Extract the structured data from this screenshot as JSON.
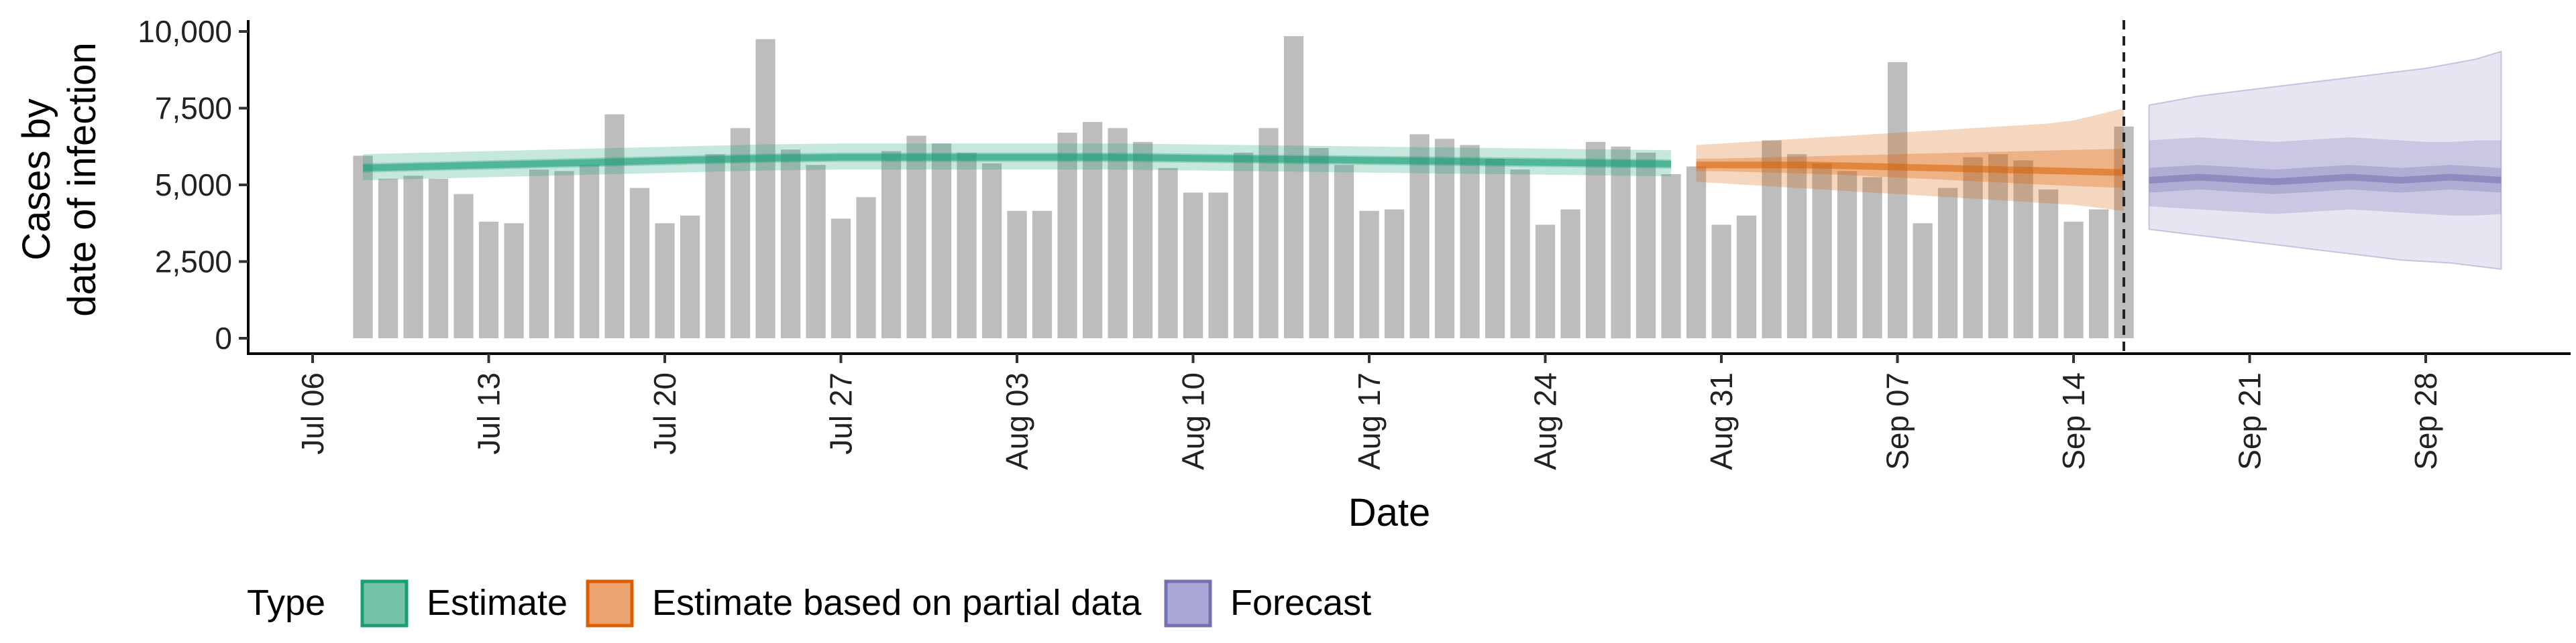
{
  "chart_data": {
    "type": "bar",
    "xlabel": "Date",
    "ylabel_lines": [
      "Cases by",
      "date of infection"
    ],
    "ylim": [
      0,
      10000
    ],
    "yticks": [
      0,
      2500,
      5000,
      7500,
      10000
    ],
    "ytick_labels": [
      "0",
      "2,500",
      "5,000",
      "7,500",
      "10,000"
    ],
    "xlim": [
      "2020-07-04",
      "2020-10-03"
    ],
    "xticks": [
      "2020-07-06",
      "2020-07-13",
      "2020-07-20",
      "2020-07-27",
      "2020-08-03",
      "2020-08-10",
      "2020-08-17",
      "2020-08-24",
      "2020-08-31",
      "2020-09-07",
      "2020-09-14",
      "2020-09-21",
      "2020-09-28"
    ],
    "xtick_labels": [
      "Jul 06",
      "Jul 13",
      "Jul 20",
      "Jul 27",
      "Aug 03",
      "Aug 10",
      "Aug 17",
      "Aug 24",
      "Aug 31",
      "Sep 07",
      "Sep 14",
      "Sep 21",
      "Sep 28"
    ],
    "vline_date": "2020-09-16",
    "bar_color": "#bdbdbd",
    "bars": {
      "start_date": "2020-07-08",
      "values": [
        5950,
        5200,
        5300,
        5200,
        4700,
        3800,
        3750,
        5500,
        5450,
        5650,
        7300,
        4900,
        3750,
        4000,
        6000,
        6850,
        9750,
        6150,
        5650,
        3900,
        4600,
        6100,
        6600,
        6350,
        6050,
        5700,
        4150,
        4150,
        6700,
        7050,
        6850,
        6400,
        5550,
        4750,
        4750,
        6050,
        6850,
        9850,
        6200,
        5650,
        4150,
        4200,
        6650,
        6500,
        6300,
        5850,
        5500,
        3700,
        4200,
        6400,
        6250,
        6050,
        5350,
        5600,
        3700,
        4000,
        6450,
        6000,
        5700,
        5450,
        5250,
        9000,
        3750,
        4900,
        5900,
        6000,
        5800,
        4850,
        3800,
        4200,
        6900
      ]
    },
    "series": [
      {
        "name": "Estimate",
        "color": "#1b9e77",
        "legend_fill": "#75c4a7",
        "start_date": "2020-07-08",
        "median": [
          5550,
          5570,
          5590,
          5610,
          5630,
          5650,
          5670,
          5690,
          5710,
          5730,
          5750,
          5770,
          5790,
          5810,
          5830,
          5850,
          5870,
          5880,
          5890,
          5900,
          5900,
          5900,
          5900,
          5900,
          5900,
          5900,
          5900,
          5900,
          5900,
          5900,
          5900,
          5890,
          5880,
          5870,
          5860,
          5850,
          5840,
          5830,
          5820,
          5810,
          5800,
          5790,
          5780,
          5770,
          5760,
          5750,
          5740,
          5730,
          5720,
          5710,
          5700,
          5690,
          5680
        ],
        "lower50": [
          5400,
          5420,
          5440,
          5460,
          5480,
          5500,
          5520,
          5540,
          5560,
          5580,
          5600,
          5620,
          5640,
          5660,
          5680,
          5700,
          5720,
          5730,
          5740,
          5750,
          5750,
          5750,
          5750,
          5750,
          5750,
          5750,
          5750,
          5750,
          5750,
          5750,
          5750,
          5740,
          5730,
          5720,
          5710,
          5700,
          5690,
          5680,
          5670,
          5660,
          5650,
          5640,
          5630,
          5620,
          5610,
          5600,
          5590,
          5580,
          5570,
          5560,
          5550,
          5540,
          5530
        ],
        "upper50": [
          5700,
          5720,
          5740,
          5760,
          5780,
          5800,
          5820,
          5840,
          5860,
          5880,
          5900,
          5920,
          5940,
          5960,
          5980,
          6000,
          6020,
          6030,
          6040,
          6050,
          6050,
          6050,
          6050,
          6050,
          6050,
          6050,
          6050,
          6050,
          6050,
          6050,
          6050,
          6040,
          6030,
          6020,
          6010,
          6000,
          5990,
          5980,
          5970,
          5960,
          5950,
          5940,
          5930,
          5920,
          5910,
          5900,
          5890,
          5880,
          5870,
          5860,
          5850,
          5840,
          5830
        ],
        "lower90": [
          5150,
          5170,
          5190,
          5210,
          5230,
          5250,
          5270,
          5290,
          5310,
          5330,
          5350,
          5370,
          5390,
          5410,
          5430,
          5450,
          5470,
          5480,
          5490,
          5500,
          5500,
          5500,
          5500,
          5500,
          5500,
          5500,
          5500,
          5500,
          5500,
          5500,
          5500,
          5490,
          5480,
          5470,
          5460,
          5450,
          5440,
          5430,
          5420,
          5410,
          5400,
          5390,
          5380,
          5370,
          5360,
          5350,
          5340,
          5330,
          5320,
          5310,
          5300,
          5290,
          5280
        ],
        "upper90": [
          6000,
          6020,
          6040,
          6060,
          6080,
          6100,
          6120,
          6140,
          6160,
          6180,
          6200,
          6220,
          6240,
          6260,
          6280,
          6300,
          6320,
          6330,
          6340,
          6350,
          6350,
          6350,
          6350,
          6350,
          6350,
          6350,
          6350,
          6350,
          6350,
          6350,
          6350,
          6340,
          6330,
          6320,
          6310,
          6300,
          6290,
          6280,
          6270,
          6260,
          6250,
          6240,
          6230,
          6220,
          6210,
          6200,
          6190,
          6180,
          6170,
          6160,
          6150,
          6140,
          6130
        ]
      },
      {
        "name": "Estimate based on partial data",
        "color": "#d95f02",
        "legend_fill": "#eba370",
        "start_date": "2020-08-30",
        "median": [
          5650,
          5650,
          5650,
          5650,
          5650,
          5640,
          5620,
          5600,
          5580,
          5560,
          5540,
          5520,
          5500,
          5480,
          5460,
          5440,
          5420,
          5400
        ],
        "lower50": [
          5450,
          5440,
          5420,
          5400,
          5380,
          5350,
          5320,
          5280,
          5240,
          5200,
          5160,
          5120,
          5080,
          5040,
          5000,
          4960,
          4930,
          4900
        ],
        "upper50": [
          5850,
          5860,
          5880,
          5900,
          5920,
          5940,
          5960,
          5980,
          6000,
          6020,
          6040,
          6060,
          6080,
          6100,
          6120,
          6140,
          6160,
          6180
        ],
        "lower90": [
          5100,
          5050,
          5000,
          4950,
          4900,
          4850,
          4800,
          4750,
          4700,
          4650,
          4600,
          4550,
          4500,
          4450,
          4400,
          4350,
          4250,
          4150
        ],
        "upper90": [
          6300,
          6350,
          6400,
          6450,
          6500,
          6550,
          6600,
          6650,
          6700,
          6750,
          6800,
          6850,
          6900,
          6950,
          7000,
          7100,
          7300,
          7500
        ]
      },
      {
        "name": "Forecast",
        "color": "#7570b3",
        "legend_fill": "#aaa8d6",
        "start_date": "2020-09-17",
        "median": [
          5150,
          5200,
          5250,
          5200,
          5150,
          5100,
          5150,
          5200,
          5250,
          5200,
          5150,
          5200,
          5250,
          5200,
          5150
        ],
        "lower50": [
          4750,
          4800,
          4850,
          4800,
          4750,
          4700,
          4750,
          4800,
          4850,
          4800,
          4750,
          4800,
          4850,
          4800,
          4750
        ],
        "upper50": [
          5550,
          5600,
          5650,
          5600,
          5550,
          5500,
          5550,
          5600,
          5650,
          5600,
          5550,
          5600,
          5650,
          5600,
          5550
        ],
        "lower90": [
          4300,
          4250,
          4200,
          4150,
          4100,
          4050,
          4100,
          4150,
          4200,
          4150,
          4100,
          4050,
          4000,
          4000,
          4050
        ],
        "upper90": [
          6450,
          6500,
          6550,
          6500,
          6450,
          6400,
          6450,
          6500,
          6550,
          6500,
          6450,
          6400,
          6400,
          6450,
          6450
        ],
        "lower_outer": [
          3550,
          3450,
          3350,
          3250,
          3150,
          3050,
          2950,
          2850,
          2750,
          2650,
          2550,
          2500,
          2450,
          2350,
          2250
        ],
        "upper_outer": [
          7600,
          7750,
          7900,
          8000,
          8100,
          8200,
          8300,
          8400,
          8500,
          8600,
          8700,
          8800,
          8950,
          9100,
          9350
        ]
      }
    ],
    "legend": {
      "title": "Type",
      "position": "bottom",
      "items": [
        "Estimate",
        "Estimate based on partial data",
        "Forecast"
      ]
    },
    "grid": false
  }
}
